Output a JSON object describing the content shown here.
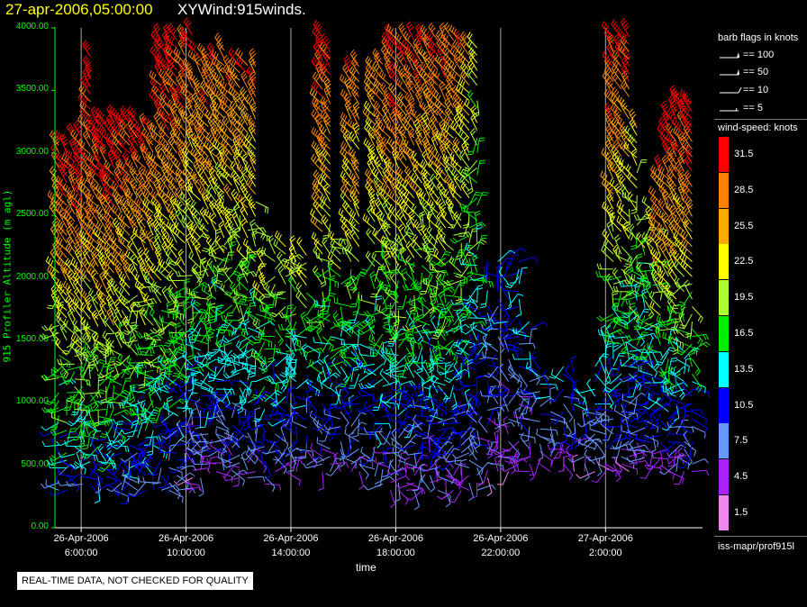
{
  "header": {
    "date_title": "27-apr-2006,05:00:00",
    "program_title": "XYWind:915winds."
  },
  "qc_notice": "REAL-TIME DATA, NOT CHECKED FOR QUALITY",
  "legend": {
    "barb_title": "barb flags in knots",
    "barb_entries": [
      "== 100",
      "== 50",
      "== 10",
      "== 5"
    ],
    "speed_title": "wind-speed: knots",
    "speed_levels": [
      "31.5",
      "28.5",
      "25.5",
      "22.5",
      "19.5",
      "16.5",
      "13.5",
      "10.5",
      "7.5",
      "4.5",
      "1.5"
    ],
    "speed_colors": [
      "#ff0000",
      "#ff8000",
      "#ffaa00",
      "#ffff00",
      "#aaff33",
      "#00ee00",
      "#00ffff",
      "#0000ff",
      "#6699ff",
      "#aa22ff",
      "#ee88ee"
    ],
    "footer": "iss-mapr/prof915l"
  },
  "chart_data": {
    "type": "scatter",
    "title": "XYWind:915winds.",
    "xlabel": "time",
    "ylabel": "915 Profiler Altitude (m agl)",
    "ylim": [
      0,
      4000
    ],
    "grid": "vertical lines at x ticks",
    "legend_position": "right",
    "y_ticks": [
      "0.00",
      "500.00",
      "1000.00",
      "1500.00",
      "2000.00",
      "2500.00",
      "3000.00",
      "3500.00",
      "4000.00"
    ],
    "x_ticks": [
      {
        "date": "26-Apr-2006",
        "time": "6:00:00",
        "hour": 6
      },
      {
        "date": "26-Apr-2006",
        "time": "10:00:00",
        "hour": 10
      },
      {
        "date": "26-Apr-2006",
        "time": "14:00:00",
        "hour": 14
      },
      {
        "date": "26-Apr-2006",
        "time": "18:00:00",
        "hour": 18
      },
      {
        "date": "26-Apr-2006",
        "time": "22:00:00",
        "hour": 22
      },
      {
        "date": "27-Apr-2006",
        "time": "2:00:00",
        "hour": 26
      }
    ],
    "xlim_hours": [
      5,
      29.7
    ],
    "profile_columns": [
      {
        "hour": 5.15,
        "top": 3100,
        "bottom": 300,
        "low": 8,
        "high": 31
      },
      {
        "hour": 5.45,
        "top": 3100,
        "bottom": 300,
        "low": 10,
        "high": 33
      },
      {
        "hour": 5.75,
        "top": 3150,
        "bottom": 350,
        "low": 10,
        "high": 33
      },
      {
        "hour": 6.05,
        "top": 3150,
        "bottom": 350,
        "low": 10,
        "high": 33
      },
      {
        "hour": 6.35,
        "top": 3800,
        "bottom": 350,
        "low": 11,
        "high": 34
      },
      {
        "hour": 6.65,
        "top": 3250,
        "bottom": 350,
        "low": 10,
        "high": 33
      },
      {
        "hour": 6.95,
        "top": 3250,
        "bottom": 350,
        "low": 10,
        "high": 33
      },
      {
        "hour": 7.25,
        "top": 3250,
        "bottom": 300,
        "low": 10,
        "high": 33
      },
      {
        "hour": 7.55,
        "top": 3250,
        "bottom": 300,
        "low": 8,
        "high": 33
      },
      {
        "hour": 7.85,
        "top": 3250,
        "bottom": 300,
        "low": 8,
        "high": 32
      },
      {
        "hour": 8.15,
        "top": 3250,
        "bottom": 300,
        "low": 8,
        "high": 31
      },
      {
        "hour": 8.45,
        "top": 3200,
        "bottom": 300,
        "low": 8,
        "high": 30
      },
      {
        "hour": 8.75,
        "top": 3200,
        "bottom": 300,
        "low": 9,
        "high": 30
      },
      {
        "hour": 9.05,
        "top": 3950,
        "bottom": 300,
        "low": 8,
        "high": 33
      },
      {
        "hour": 9.35,
        "top": 3950,
        "bottom": 300,
        "low": 8,
        "high": 33
      },
      {
        "hour": 9.65,
        "top": 3950,
        "bottom": 300,
        "low": 6,
        "high": 33
      },
      {
        "hour": 9.95,
        "top": 3950,
        "bottom": 300,
        "low": 6,
        "high": 32
      },
      {
        "hour": 10.25,
        "top": 3950,
        "bottom": 400,
        "low": 5,
        "high": 31
      },
      {
        "hour": 10.55,
        "top": 3800,
        "bottom": 400,
        "low": 5,
        "high": 31
      },
      {
        "hour": 10.85,
        "top": 3800,
        "bottom": 450,
        "low": 6,
        "high": 31
      },
      {
        "hour": 11.15,
        "top": 3800,
        "bottom": 450,
        "low": 6,
        "high": 30
      },
      {
        "hour": 11.45,
        "top": 3850,
        "bottom": 400,
        "low": 5,
        "high": 30
      },
      {
        "hour": 11.75,
        "top": 3750,
        "bottom": 400,
        "low": 5,
        "high": 30
      },
      {
        "hour": 12.05,
        "top": 3750,
        "bottom": 400,
        "low": 6,
        "high": 29
      },
      {
        "hour": 12.35,
        "top": 3700,
        "bottom": 400,
        "low": 6,
        "high": 29
      },
      {
        "hour": 12.65,
        "top": 3700,
        "bottom": 450,
        "low": 6,
        "high": 29
      },
      {
        "hour": 13.0,
        "top": 2200,
        "bottom": 350,
        "low": 6,
        "high": 24
      },
      {
        "hour": 13.4,
        "top": 2200,
        "bottom": 450,
        "low": 5,
        "high": 22
      },
      {
        "hour": 13.8,
        "top": 2250,
        "bottom": 450,
        "low": 6,
        "high": 22
      },
      {
        "hour": 14.2,
        "top": 2200,
        "bottom": 450,
        "low": 6,
        "high": 21
      },
      {
        "hour": 14.6,
        "top": 2200,
        "bottom": 500,
        "low": 6,
        "high": 21
      },
      {
        "hour": 15.2,
        "top": 3950,
        "bottom": 450,
        "low": 6,
        "high": 33
      },
      {
        "hour": 15.5,
        "top": 3850,
        "bottom": 450,
        "low": 6,
        "high": 31
      },
      {
        "hour": 15.9,
        "top": 2300,
        "bottom": 450,
        "low": 5,
        "high": 21
      },
      {
        "hour": 16.3,
        "top": 3650,
        "bottom": 450,
        "low": 6,
        "high": 30
      },
      {
        "hour": 16.6,
        "top": 3700,
        "bottom": 450,
        "low": 6,
        "high": 29
      },
      {
        "hour": 17.2,
        "top": 3700,
        "bottom": 350,
        "low": 6,
        "high": 28
      },
      {
        "hour": 17.5,
        "top": 3800,
        "bottom": 350,
        "low": 6,
        "high": 29
      },
      {
        "hour": 17.8,
        "top": 3900,
        "bottom": 300,
        "low": 5,
        "high": 31
      },
      {
        "hour": 18.1,
        "top": 3950,
        "bottom": 300,
        "low": 5,
        "high": 32
      },
      {
        "hour": 18.4,
        "top": 3950,
        "bottom": 300,
        "low": 5,
        "high": 31
      },
      {
        "hour": 18.7,
        "top": 3900,
        "bottom": 300,
        "low": 5,
        "high": 31
      },
      {
        "hour": 19.0,
        "top": 3900,
        "bottom": 300,
        "low": 5,
        "high": 30
      },
      {
        "hour": 19.3,
        "top": 3900,
        "bottom": 300,
        "low": 5,
        "high": 30
      },
      {
        "hour": 19.6,
        "top": 3950,
        "bottom": 300,
        "low": 5,
        "high": 30
      },
      {
        "hour": 19.9,
        "top": 3950,
        "bottom": 300,
        "low": 5,
        "high": 31
      },
      {
        "hour": 20.2,
        "top": 3950,
        "bottom": 300,
        "low": 5,
        "high": 30
      },
      {
        "hour": 20.5,
        "top": 3900,
        "bottom": 300,
        "low": 5,
        "high": 29
      },
      {
        "hour": 20.8,
        "top": 3850,
        "bottom": 300,
        "low": 5,
        "high": 26
      },
      {
        "hour": 21.1,
        "top": 3850,
        "bottom": 300,
        "low": 5,
        "high": 22
      },
      {
        "hour": 21.5,
        "top": 2150,
        "bottom": 400,
        "low": 5,
        "high": 13
      },
      {
        "hour": 21.9,
        "top": 2150,
        "bottom": 450,
        "low": 5,
        "high": 12
      },
      {
        "hour": 22.3,
        "top": 2200,
        "bottom": 450,
        "low": 5,
        "high": 12
      },
      {
        "hour": 22.7,
        "top": 2150,
        "bottom": 450,
        "low": 5,
        "high": 12
      },
      {
        "hour": 23.1,
        "top": 1650,
        "bottom": 450,
        "low": 5,
        "high": 12
      },
      {
        "hour": 23.5,
        "top": 1300,
        "bottom": 550,
        "low": 5,
        "high": 12
      },
      {
        "hour": 23.9,
        "top": 1150,
        "bottom": 450,
        "low": 5,
        "high": 12
      },
      {
        "hour": 24.4,
        "top": 1300,
        "bottom": 450,
        "low": 5,
        "high": 12
      },
      {
        "hour": 24.8,
        "top": 1250,
        "bottom": 450,
        "low": 5,
        "high": 12
      },
      {
        "hour": 25.2,
        "top": 1100,
        "bottom": 450,
        "low": 5,
        "high": 12
      },
      {
        "hour": 25.6,
        "top": 1300,
        "bottom": 450,
        "low": 5,
        "high": 13
      },
      {
        "hour": 26.0,
        "top": 1650,
        "bottom": 450,
        "low": 5,
        "high": 16
      },
      {
        "hour": 26.3,
        "top": 3950,
        "bottom": 450,
        "low": 5,
        "high": 33
      },
      {
        "hour": 26.6,
        "top": 3950,
        "bottom": 450,
        "low": 5,
        "high": 32
      },
      {
        "hour": 26.9,
        "top": 3950,
        "bottom": 450,
        "low": 5,
        "high": 31
      },
      {
        "hour": 27.2,
        "top": 3250,
        "bottom": 500,
        "low": 5,
        "high": 24
      },
      {
        "hour": 27.5,
        "top": 2300,
        "bottom": 500,
        "low": 5,
        "high": 21
      },
      {
        "hour": 27.8,
        "top": 2550,
        "bottom": 500,
        "low": 5,
        "high": 22
      },
      {
        "hour": 28.1,
        "top": 2850,
        "bottom": 500,
        "low": 5,
        "high": 30
      },
      {
        "hour": 28.4,
        "top": 3300,
        "bottom": 450,
        "low": 5,
        "high": 33
      },
      {
        "hour": 28.7,
        "top": 3400,
        "bottom": 450,
        "low": 5,
        "high": 33
      },
      {
        "hour": 29.0,
        "top": 3400,
        "bottom": 450,
        "low": 5,
        "high": 33
      },
      {
        "hour": 29.3,
        "top": 3400,
        "bottom": 450,
        "low": 5,
        "high": 33
      }
    ],
    "altitude_step": 60
  }
}
